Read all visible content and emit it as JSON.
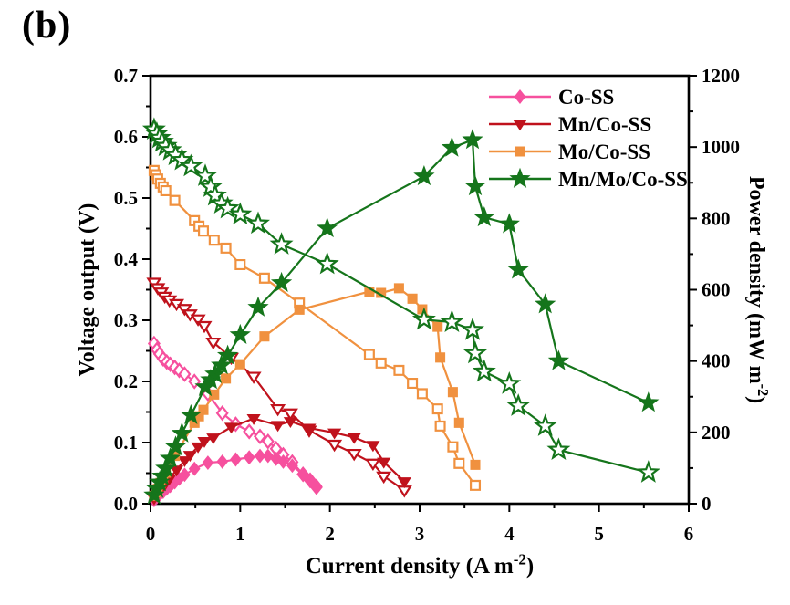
{
  "figure_label": "(b)",
  "chart_data": {
    "type": "line",
    "title": "",
    "x_axis": {
      "label": "Current density (A m⁻²)",
      "min": 0,
      "max": 6,
      "major_tick_step": 1,
      "minor_tick_step": 0.5,
      "tick_labels": [
        "0",
        "1",
        "2",
        "3",
        "4",
        "5",
        "6"
      ]
    },
    "y_axis_left": {
      "label": "Voltage output (V)",
      "min": 0,
      "max": 0.7,
      "major_tick_step": 0.1,
      "minor_tick_step": 0.05,
      "tick_labels": [
        "0.0",
        "0.1",
        "0.2",
        "0.3",
        "0.4",
        "0.5",
        "0.6",
        "0.7"
      ]
    },
    "y_axis_right": {
      "label": "Power density (mW m⁻²)",
      "min": 0,
      "max": 1200,
      "major_tick_step": 200,
      "minor_tick_step": 100,
      "tick_labels": [
        "0",
        "200",
        "400",
        "600",
        "800",
        "1000",
        "1200"
      ]
    },
    "marker_convention": {
      "open_markers": "voltage output, left axis",
      "filled_markers": "power density, right axis"
    },
    "legend": [
      {
        "label": "Co-SS",
        "series": "co_ss"
      },
      {
        "label": "Mn/Co-SS",
        "series": "mn_co_ss"
      },
      {
        "label": "Mo/Co-SS",
        "series": "mo_co_ss"
      },
      {
        "label": "Mn/Mo/Co-SS",
        "series": "mn_mo_co_ss"
      }
    ],
    "legend_position": "upper right inside plot, no frame",
    "grid": false,
    "series": [
      {
        "id": "co_ss",
        "label": "Co-SS",
        "color": "#F6509E",
        "marker": "diamond",
        "current_density": [
          0.04,
          0.07,
          0.1,
          0.14,
          0.18,
          0.22,
          0.27,
          0.32,
          0.38,
          0.49,
          0.64,
          0.8,
          0.95,
          1.1,
          1.22,
          1.31,
          1.4,
          1.48,
          1.58,
          1.7,
          1.78,
          1.85
        ],
        "voltage": [
          0.262,
          0.252,
          0.245,
          0.237,
          0.232,
          0.228,
          0.223,
          0.218,
          0.212,
          0.2,
          0.18,
          0.148,
          0.13,
          0.118,
          0.11,
          0.102,
          0.09,
          0.08,
          0.068,
          0.048,
          0.038,
          0.027
        ],
        "power_density": [
          10,
          18,
          25,
          33,
          42,
          50,
          60,
          70,
          81,
          98,
          115,
          118,
          124,
          130,
          134,
          134,
          126,
          118,
          107,
          82,
          68,
          50
        ]
      },
      {
        "id": "mn_co_ss",
        "label": "Mn/Co-SS",
        "color": "#C0121C",
        "marker": "triangle-down",
        "current_density": [
          0.04,
          0.08,
          0.12,
          0.16,
          0.21,
          0.29,
          0.38,
          0.44,
          0.53,
          0.6,
          0.7,
          0.9,
          1.15,
          1.42,
          1.56,
          1.77,
          2.05,
          2.27,
          2.48,
          2.6,
          2.83
        ],
        "voltage": [
          0.362,
          0.353,
          0.346,
          0.339,
          0.333,
          0.327,
          0.319,
          0.31,
          0.302,
          0.291,
          0.264,
          0.239,
          0.208,
          0.155,
          0.148,
          0.12,
          0.097,
          0.082,
          0.066,
          0.045,
          0.022
        ],
        "power_density": [
          14,
          28,
          42,
          54,
          70,
          95,
          121,
          136,
          160,
          175,
          185,
          215,
          239,
          220,
          231,
          212,
          199,
          186,
          164,
          117,
          62
        ]
      },
      {
        "id": "mo_co_ss",
        "label": "Mo/Co-SS",
        "color": "#F0913F",
        "marker": "square",
        "current_density": [
          0.04,
          0.06,
          0.08,
          0.11,
          0.14,
          0.17,
          0.27,
          0.49,
          0.54,
          0.59,
          0.71,
          0.84,
          1.0,
          1.27,
          1.66,
          2.44,
          2.57,
          2.77,
          2.92,
          3.03,
          3.2,
          3.23,
          3.37,
          3.44,
          3.62
        ],
        "voltage": [
          0.545,
          0.538,
          0.531,
          0.524,
          0.518,
          0.512,
          0.496,
          0.463,
          0.454,
          0.446,
          0.431,
          0.418,
          0.391,
          0.369,
          0.328,
          0.244,
          0.23,
          0.218,
          0.197,
          0.18,
          0.155,
          0.127,
          0.093,
          0.066,
          0.03
        ],
        "power_density": [
          22,
          32,
          42,
          58,
          73,
          87,
          134,
          227,
          245,
          263,
          306,
          351,
          391,
          469,
          544,
          595,
          591,
          604,
          575,
          545,
          496,
          410,
          313,
          227,
          109
        ]
      },
      {
        "id": "mn_mo_co_ss",
        "label": "Mn/Mo/Co-SS",
        "color": "#15751B",
        "marker": "star",
        "current_density": [
          0.04,
          0.07,
          0.1,
          0.13,
          0.17,
          0.22,
          0.28,
          0.35,
          0.45,
          0.61,
          0.67,
          0.72,
          0.79,
          0.86,
          1.0,
          1.2,
          1.46,
          1.97,
          3.05,
          3.36,
          3.59,
          3.62,
          3.72,
          4.0,
          4.1,
          4.4,
          4.55,
          5.55
        ],
        "voltage": [
          0.612,
          0.605,
          0.598,
          0.592,
          0.585,
          0.578,
          0.57,
          0.562,
          0.552,
          0.536,
          0.518,
          0.504,
          0.491,
          0.483,
          0.473,
          0.458,
          0.424,
          0.392,
          0.301,
          0.297,
          0.284,
          0.246,
          0.216,
          0.196,
          0.16,
          0.127,
          0.088,
          0.051
        ],
        "power_density": [
          24,
          42,
          60,
          77,
          99,
          127,
          160,
          197,
          248,
          327,
          347,
          363,
          388,
          415,
          473,
          550,
          619,
          772,
          918,
          998,
          1020,
          890,
          803,
          784,
          656,
          559,
          400,
          283
        ]
      }
    ],
    "axis_color": "#000000"
  }
}
